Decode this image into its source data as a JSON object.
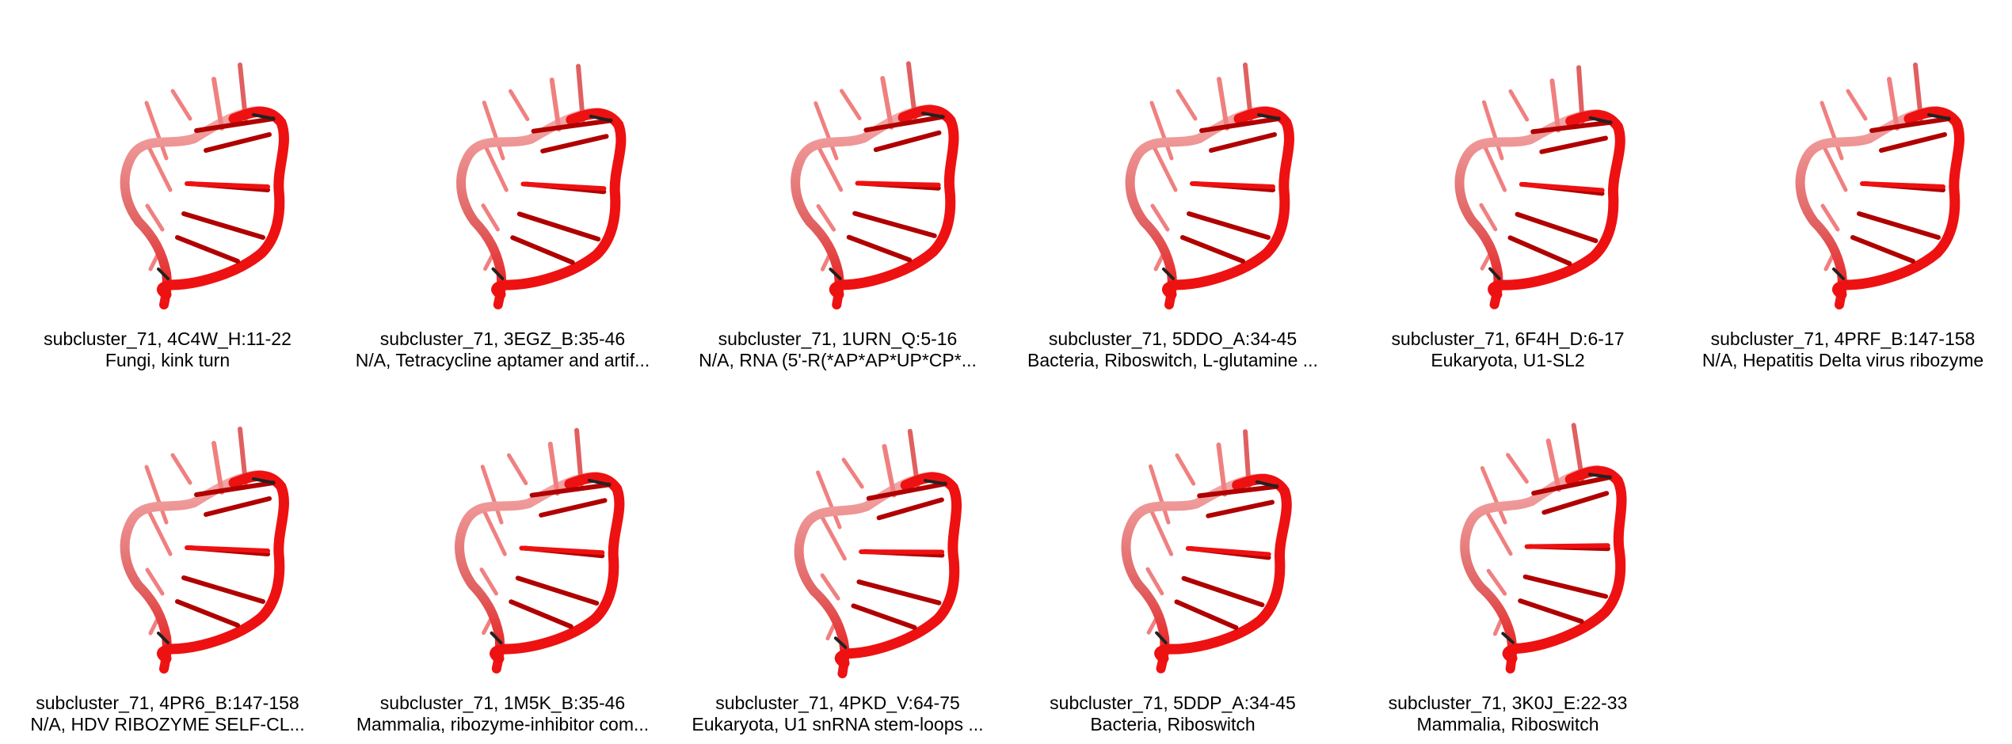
{
  "panels": [
    {
      "id_label": "subcluster_71, 4C4W_H:11-22",
      "desc_label": "Fungi, kink turn"
    },
    {
      "id_label": "subcluster_71, 3EGZ_B:35-46",
      "desc_label": "N/A, Tetracycline aptamer and artif..."
    },
    {
      "id_label": "subcluster_71, 1URN_Q:5-16",
      "desc_label": "N/A, RNA (5'-R(*AP*AP*UP*CP*..."
    },
    {
      "id_label": "subcluster_71, 5DDO_A:34-45",
      "desc_label": "Bacteria, Riboswitch, L-glutamine ..."
    },
    {
      "id_label": "subcluster_71, 6F4H_D:6-17",
      "desc_label": "Eukaryota, U1-SL2"
    },
    {
      "id_label": "subcluster_71, 4PRF_B:147-158",
      "desc_label": "N/A, Hepatitis Delta virus ribozyme"
    },
    {
      "id_label": "subcluster_71, 4PR6_B:147-158",
      "desc_label": "N/A, HDV RIBOZYME SELF-CL..."
    },
    {
      "id_label": "subcluster_71, 1M5K_B:35-46",
      "desc_label": "Mammalia, ribozyme-inhibitor com..."
    },
    {
      "id_label": "subcluster_71, 4PKD_V:64-75",
      "desc_label": "Eukaryota, U1 snRNA stem-loops ..."
    },
    {
      "id_label": "subcluster_71, 5DDP_A:34-45",
      "desc_label": "Bacteria, Riboswitch"
    },
    {
      "id_label": "subcluster_71, 3K0J_E:22-33",
      "desc_label": "Mammalia, Riboswitch"
    }
  ],
  "colors": {
    "backbone_main": "#ee1111",
    "backbone_light": "#f4aaaa",
    "backbone_mid": "#e06060",
    "base_dark": "#b00000",
    "base_light": "#f08080",
    "kink": "#222222"
  }
}
